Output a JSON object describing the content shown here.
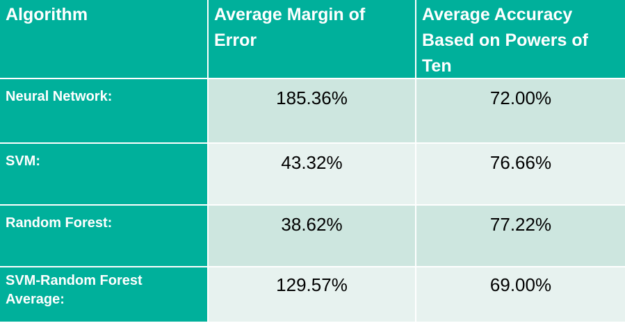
{
  "table": {
    "headers": [
      "Algorithm",
      "Average Margin of Error",
      "Average Accuracy Based on Powers of Ten"
    ],
    "rows": [
      {
        "algorithm": "Neural Network:",
        "margin": "185.36%",
        "accuracy": "72.00%"
      },
      {
        "algorithm": "SVM:",
        "margin": "43.32%",
        "accuracy": "76.66%"
      },
      {
        "algorithm": "Random Forest:",
        "margin": "38.62%",
        "accuracy": "77.22%"
      },
      {
        "algorithm": "SVM-Random Forest Average:",
        "margin": "129.57%",
        "accuracy": "69.00%"
      }
    ]
  },
  "colors": {
    "header_bg": "#00b09b",
    "row_odd_bg": "#cde6df",
    "row_even_bg": "#e7f2ef"
  }
}
